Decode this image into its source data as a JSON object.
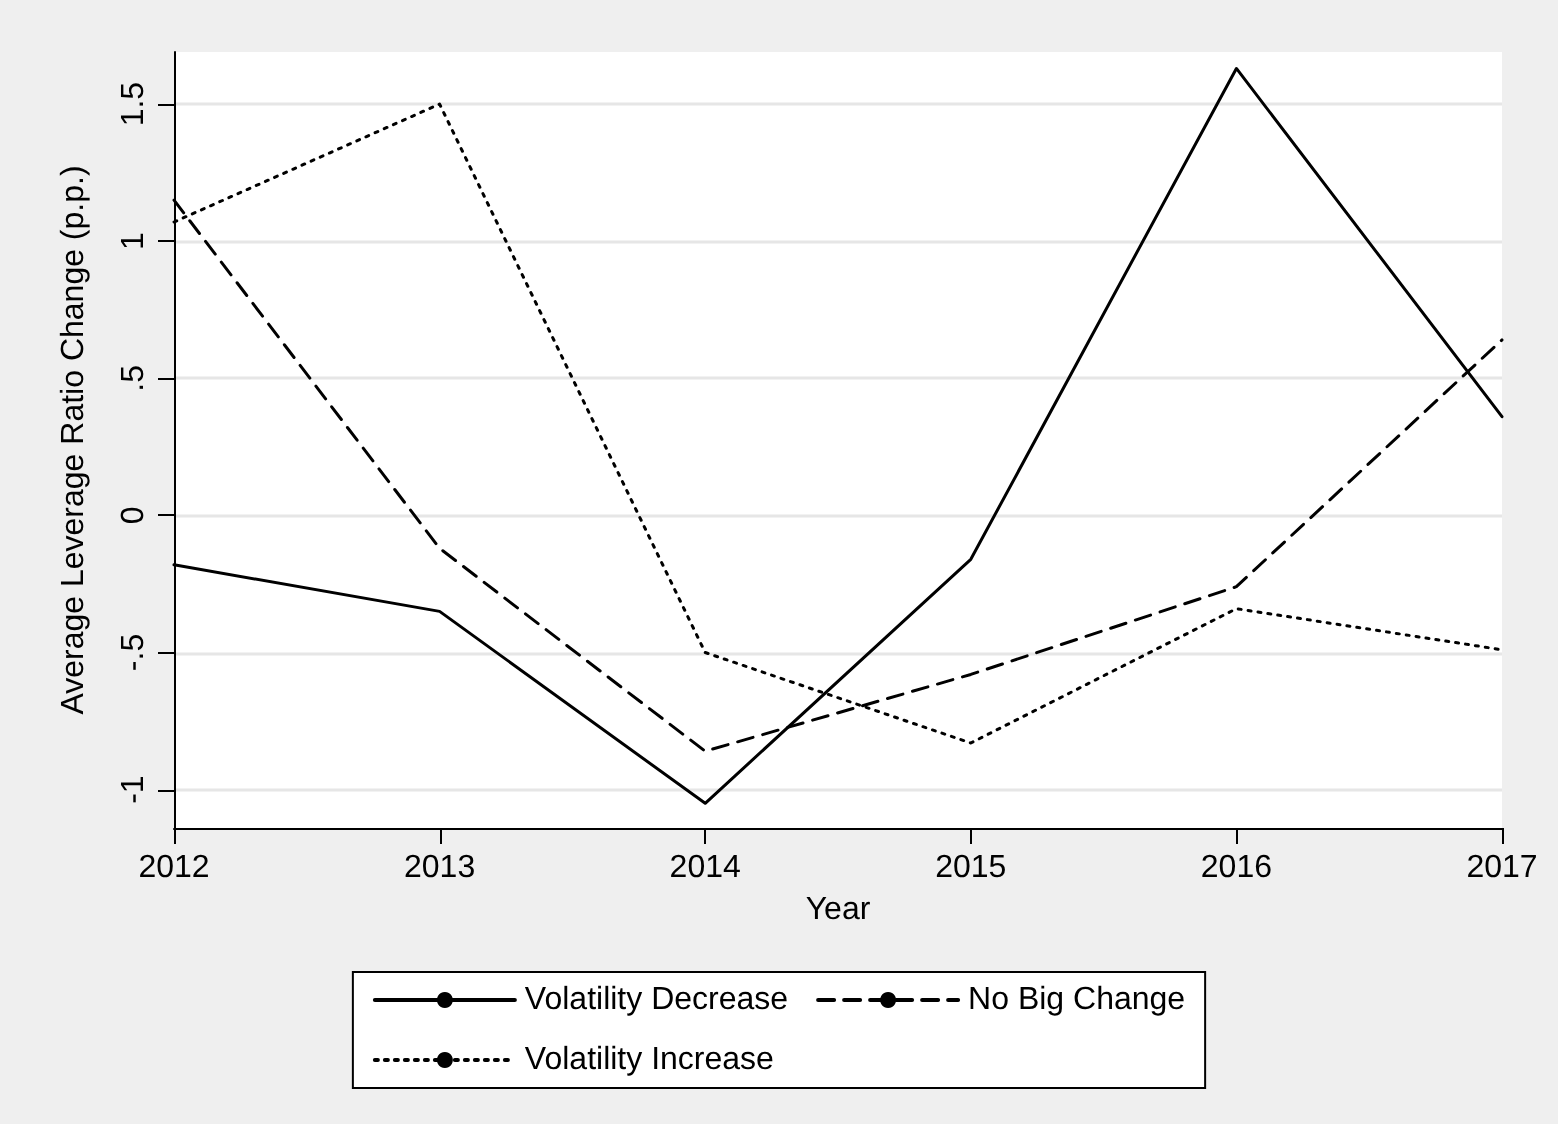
{
  "chart_data": {
    "type": "line",
    "xlabel": "Year",
    "ylabel": "Average Leverage Ratio Change (p.p.)",
    "x": [
      2012,
      2013,
      2014,
      2015,
      2016,
      2017
    ],
    "series": [
      {
        "name": "Volatility Decrease",
        "color": "#000000",
        "line_style": "solid",
        "values": [
          -0.18,
          -0.35,
          -1.05,
          -0.16,
          1.63,
          0.36
        ]
      },
      {
        "name": "No Big Change",
        "color": "#000000",
        "line_style": "dashed",
        "values": [
          1.15,
          -0.12,
          -0.86,
          -0.58,
          -0.26,
          0.64
        ]
      },
      {
        "name": "Volatility Increase",
        "color": "#000000",
        "line_style": "dotted",
        "values": [
          1.07,
          1.5,
          -0.5,
          -0.83,
          -0.34,
          -0.49
        ]
      }
    ],
    "xlim": [
      2012,
      2017
    ],
    "xticks": [
      2012,
      2013,
      2014,
      2015,
      2016,
      2017
    ],
    "ylim": [
      -1.14,
      1.69
    ],
    "yticks": [
      {
        "value": -1,
        "label": "-1"
      },
      {
        "value": -0.5,
        "label": "-.5"
      },
      0,
      {
        "value": 0.5,
        "label": ".5"
      },
      1,
      1.5
    ],
    "grid": "y",
    "legend": "bottom",
    "marker": "none"
  }
}
